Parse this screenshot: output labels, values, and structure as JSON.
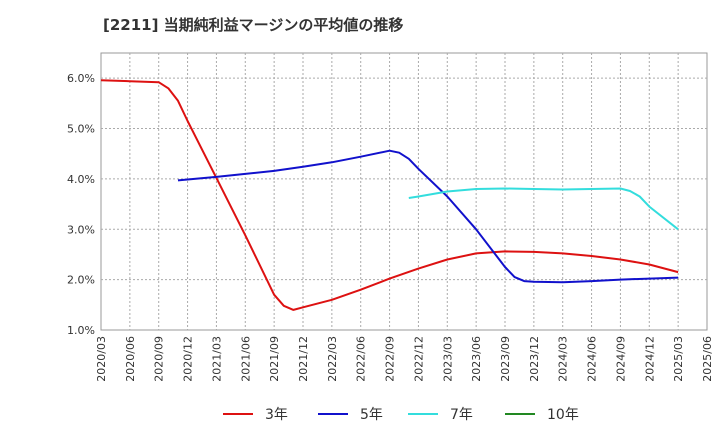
{
  "chart_data": {
    "type": "line",
    "title": "[2211]  当期純利益マージンの平均値の推移",
    "xlabel": "",
    "ylabel": "",
    "x_ticks": [
      "2020/03",
      "2020/06",
      "2020/09",
      "2020/12",
      "2021/03",
      "2021/06",
      "2021/09",
      "2021/12",
      "2022/03",
      "2022/06",
      "2022/09",
      "2022/12",
      "2023/03",
      "2023/06",
      "2023/09",
      "2023/12",
      "2024/03",
      "2024/06",
      "2024/09",
      "2024/12",
      "2025/03",
      "2025/06"
    ],
    "y_ticks": [
      "1.0%",
      "2.0%",
      "3.0%",
      "4.0%",
      "5.0%",
      "6.0%"
    ],
    "ylim": [
      1.0,
      6.5
    ],
    "grid": true,
    "legend_position": "bottom",
    "series": [
      {
        "name": "3年",
        "color": "#dd1111",
        "points": [
          [
            "2020/03",
            5.96
          ],
          [
            "2020/06",
            5.94
          ],
          [
            "2020/09",
            5.92
          ],
          [
            "2020/10",
            5.8
          ],
          [
            "2020/11",
            5.55
          ],
          [
            "2020/12",
            5.15
          ],
          [
            "2021/03",
            4.02
          ],
          [
            "2021/06",
            2.88
          ],
          [
            "2021/09",
            1.7
          ],
          [
            "2021/10",
            1.48
          ],
          [
            "2021/11",
            1.4
          ],
          [
            "2021/12",
            1.45
          ],
          [
            "2022/03",
            1.6
          ],
          [
            "2022/06",
            1.8
          ],
          [
            "2022/09",
            2.02
          ],
          [
            "2022/12",
            2.22
          ],
          [
            "2023/03",
            2.4
          ],
          [
            "2023/06",
            2.52
          ],
          [
            "2023/09",
            2.56
          ],
          [
            "2023/12",
            2.55
          ],
          [
            "2024/03",
            2.52
          ],
          [
            "2024/06",
            2.47
          ],
          [
            "2024/09",
            2.4
          ],
          [
            "2024/12",
            2.3
          ],
          [
            "2025/03",
            2.15
          ]
        ]
      },
      {
        "name": "5年",
        "color": "#1111cc",
        "points": [
          [
            "2020/11",
            3.97
          ],
          [
            "2021/03",
            4.04
          ],
          [
            "2021/06",
            4.1
          ],
          [
            "2021/09",
            4.16
          ],
          [
            "2021/12",
            4.24
          ],
          [
            "2022/03",
            4.33
          ],
          [
            "2022/06",
            4.44
          ],
          [
            "2022/09",
            4.56
          ],
          [
            "2022/10",
            4.52
          ],
          [
            "2022/11",
            4.4
          ],
          [
            "2022/12",
            4.2
          ],
          [
            "2023/03",
            3.65
          ],
          [
            "2023/06",
            3.0
          ],
          [
            "2023/09",
            2.25
          ],
          [
            "2023/10",
            2.05
          ],
          [
            "2023/11",
            1.97
          ],
          [
            "2023/12",
            1.96
          ],
          [
            "2024/03",
            1.95
          ],
          [
            "2024/06",
            1.97
          ],
          [
            "2024/09",
            2.0
          ],
          [
            "2024/12",
            2.02
          ],
          [
            "2025/03",
            2.04
          ]
        ]
      },
      {
        "name": "7年",
        "color": "#33dddd",
        "points": [
          [
            "2022/11",
            3.62
          ],
          [
            "2022/12",
            3.65
          ],
          [
            "2023/03",
            3.75
          ],
          [
            "2023/06",
            3.8
          ],
          [
            "2023/09",
            3.81
          ],
          [
            "2023/12",
            3.8
          ],
          [
            "2024/03",
            3.79
          ],
          [
            "2024/06",
            3.8
          ],
          [
            "2024/09",
            3.81
          ],
          [
            "2024/10",
            3.76
          ],
          [
            "2024/11",
            3.65
          ],
          [
            "2024/12",
            3.45
          ],
          [
            "2025/03",
            3.0
          ]
        ]
      },
      {
        "name": "10年",
        "color": "#228822",
        "points": []
      }
    ]
  }
}
